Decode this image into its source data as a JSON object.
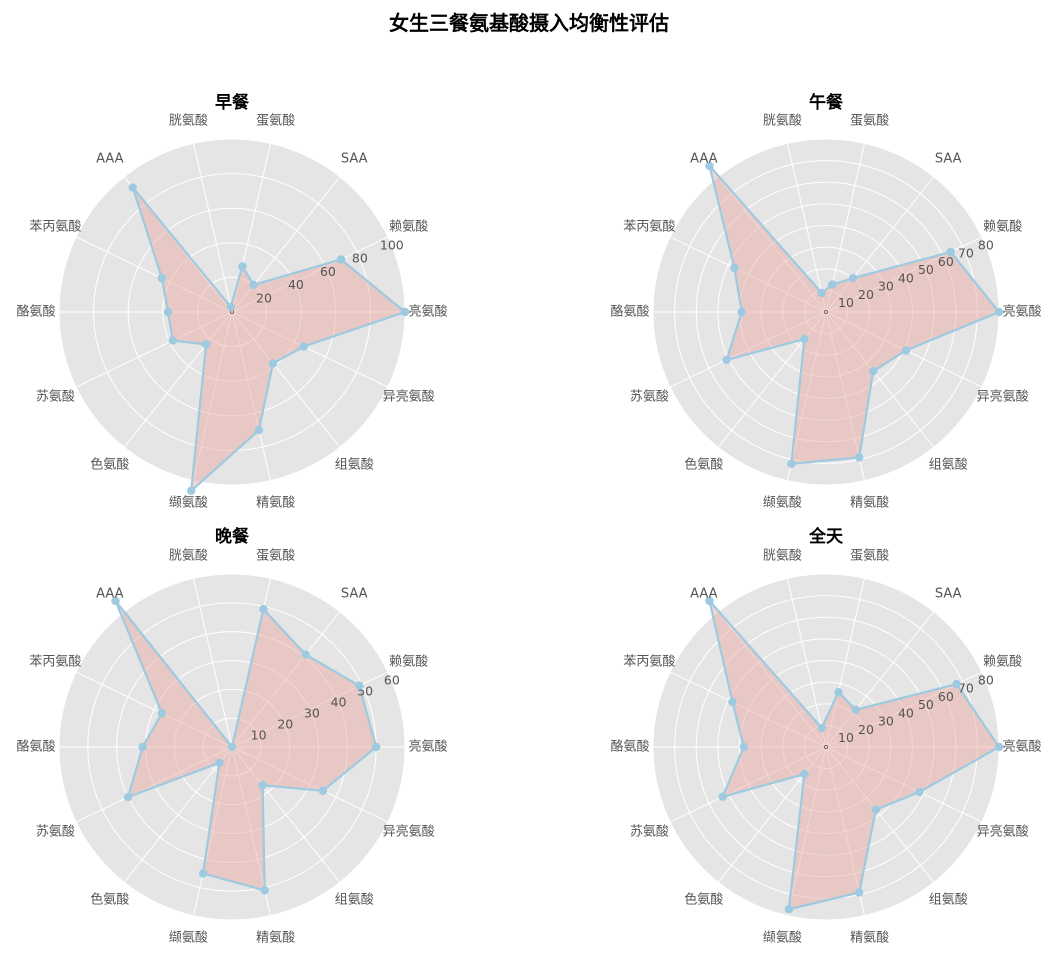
{
  "figure": {
    "title": "女生三餐氨基酸摄入均衡性评估"
  },
  "colors": {
    "background": "#e5e5e5",
    "grid": "#ffffff",
    "line": "#9ecae1",
    "fill": "#e8a59b",
    "text": "#555555"
  },
  "chart_data": [
    {
      "type": "radar",
      "title": "早餐",
      "categories": [
        "亮氨酸",
        "赖氨酸",
        "SAA",
        "蛋氨酸",
        "胱氨酸",
        "AAA",
        "苯丙氨酸",
        "酪氨酸",
        "苏氨酸",
        "色氨酸",
        "缬氨酸",
        "精氨酸",
        "组氨酸",
        "异亮氨酸"
      ],
      "rmax": 100,
      "rticks": [
        20,
        40,
        60,
        80,
        100
      ],
      "values": [
        100,
        70,
        20,
        27,
        3,
        92,
        45,
        37,
        38,
        24,
        106,
        70,
        38,
        46
      ],
      "grid": true,
      "background": "gray"
    },
    {
      "type": "radar",
      "title": "午餐",
      "categories": [
        "亮氨酸",
        "赖氨酸",
        "SAA",
        "蛋氨酸",
        "胱氨酸",
        "AAA",
        "苯丙氨酸",
        "酪氨酸",
        "苏氨酸",
        "色氨酸",
        "缬氨酸",
        "精氨酸",
        "组氨酸",
        "异亮氨酸"
      ],
      "rmax": 80,
      "rticks": [
        10,
        20,
        30,
        40,
        50,
        60,
        70,
        80
      ],
      "values": [
        80,
        64,
        20,
        13,
        9,
        89,
        47,
        39,
        51,
        16,
        72,
        69,
        35,
        41
      ],
      "grid": true,
      "background": "gray"
    },
    {
      "type": "radar",
      "title": "晚餐",
      "categories": [
        "亮氨酸",
        "赖氨酸",
        "SAA",
        "蛋氨酸",
        "胱氨酸",
        "AAA",
        "苯丙氨酸",
        "酪氨酸",
        "苏氨酸",
        "色氨酸",
        "缬氨酸",
        "精氨酸",
        "组氨酸",
        "异亮氨酸"
      ],
      "rmax": 60,
      "rticks": [
        10,
        20,
        30,
        40,
        50,
        60
      ],
      "values": [
        50,
        49,
        41,
        49,
        0,
        86,
        27,
        31,
        40,
        7,
        45,
        51,
        17,
        35
      ],
      "grid": true,
      "background": "gray"
    },
    {
      "type": "radar",
      "title": "全天",
      "categories": [
        "亮氨酸",
        "赖氨酸",
        "SAA",
        "蛋氨酸",
        "胱氨酸",
        "AAA",
        "苯丙氨酸",
        "酪氨酸",
        "苏氨酸",
        "色氨酸",
        "缬氨酸",
        "精氨酸",
        "组氨酸",
        "异亮氨酸"
      ],
      "rmax": 80,
      "rticks": [
        10,
        20,
        30,
        40,
        50,
        60,
        70,
        80
      ],
      "values": [
        80,
        67,
        22,
        26,
        9,
        90,
        48,
        38,
        53,
        16,
        77,
        69,
        37,
        48
      ],
      "grid": true,
      "background": "gray"
    }
  ]
}
